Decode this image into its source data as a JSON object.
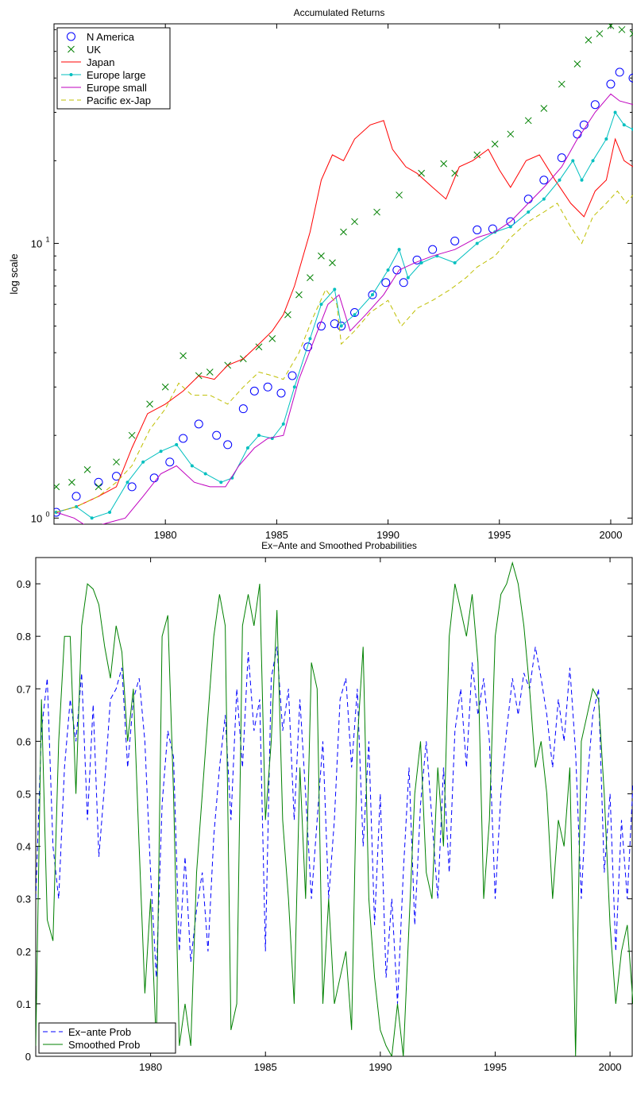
{
  "chart_data": [
    {
      "type": "line",
      "title": "Accumulated Returns",
      "ylabel": "log scale",
      "yscale": "log",
      "xlim": [
        1975.0,
        2001.0
      ],
      "ylim": [
        0.95,
        63
      ],
      "xticks": [
        1980,
        1985,
        1990,
        1995,
        2000
      ],
      "yticks": [
        {
          "value": 1,
          "label": "10",
          "sup": "0"
        },
        {
          "value": 10,
          "label": "10",
          "sup": "1"
        }
      ],
      "grid": false,
      "legend": "top-left",
      "series": [
        {
          "name": "N America",
          "color": "#0000ff",
          "marker": "circle",
          "x": [
            1975.1,
            1976.0,
            1977.0,
            1977.8,
            1978.5,
            1979.5,
            1980.2,
            1980.8,
            1981.5,
            1982.3,
            1982.8,
            1983.5,
            1984.0,
            1984.6,
            1985.2,
            1985.7,
            1986.4,
            1987.0,
            1987.6,
            1987.9,
            1988.5,
            1989.3,
            1989.9,
            1990.4,
            1990.7,
            1991.3,
            1992.0,
            1993.0,
            1994.0,
            1994.7,
            1995.5,
            1996.3,
            1997.0,
            1997.8,
            1998.5,
            1998.8,
            1999.3,
            2000.0,
            2000.4,
            2001.0
          ],
          "y": [
            1.05,
            1.2,
            1.35,
            1.42,
            1.3,
            1.4,
            1.6,
            1.95,
            2.2,
            2.0,
            1.85,
            2.5,
            2.9,
            3.0,
            2.85,
            3.3,
            4.2,
            5.0,
            5.1,
            5.0,
            5.6,
            6.5,
            7.2,
            8.0,
            7.2,
            8.7,
            9.5,
            10.2,
            11.2,
            11.3,
            12.0,
            14.5,
            17.0,
            20.5,
            25.0,
            27.0,
            32.0,
            38.0,
            42.0,
            40.0
          ]
        },
        {
          "name": "UK",
          "color": "#008000",
          "marker": "x",
          "x": [
            1975.1,
            1975.8,
            1976.5,
            1977.0,
            1977.8,
            1978.5,
            1979.3,
            1980.0,
            1980.8,
            1981.5,
            1982.0,
            1982.8,
            1983.5,
            1984.2,
            1984.8,
            1985.5,
            1986.0,
            1986.5,
            1987.0,
            1987.5,
            1988.0,
            1988.5,
            1989.5,
            1990.5,
            1991.5,
            1992.5,
            1993.0,
            1994.0,
            1994.8,
            1995.5,
            1996.3,
            1997.0,
            1997.8,
            1998.5,
            1999.0,
            1999.5,
            2000.0,
            2000.5,
            2001.0
          ],
          "y": [
            1.3,
            1.35,
            1.5,
            1.3,
            1.6,
            2.0,
            2.6,
            3.0,
            3.9,
            3.3,
            3.4,
            3.6,
            3.8,
            4.2,
            4.5,
            5.5,
            6.5,
            7.5,
            9.0,
            8.5,
            11.0,
            12.0,
            13.0,
            15.0,
            18.0,
            19.5,
            18.0,
            21.0,
            23.0,
            25.0,
            28.0,
            31.0,
            38.0,
            45.0,
            55.0,
            58.0,
            62.0,
            60.0,
            58.0
          ]
        },
        {
          "name": "Japan",
          "color": "#ff0000",
          "marker": "none",
          "x": [
            1975.1,
            1976.0,
            1977.0,
            1977.8,
            1978.5,
            1979.2,
            1980.0,
            1980.8,
            1981.5,
            1982.2,
            1982.8,
            1983.5,
            1984.2,
            1984.8,
            1985.3,
            1985.8,
            1986.5,
            1987.0,
            1987.5,
            1988.0,
            1988.5,
            1989.2,
            1989.8,
            1990.2,
            1990.8,
            1991.3,
            1992.0,
            1992.6,
            1993.2,
            1993.8,
            1994.5,
            1995.0,
            1995.5,
            1996.2,
            1996.8,
            1997.5,
            1998.2,
            1998.8,
            1999.3,
            1999.8,
            2000.2,
            2000.6,
            2001.0
          ],
          "y": [
            1.05,
            1.1,
            1.2,
            1.3,
            1.8,
            2.4,
            2.6,
            2.9,
            3.3,
            3.2,
            3.6,
            3.8,
            4.3,
            4.8,
            5.5,
            7.0,
            11.0,
            17.0,
            21.0,
            20.0,
            24.0,
            27.0,
            28.0,
            22.0,
            19.0,
            18.0,
            16.0,
            14.5,
            19.0,
            20.0,
            22.0,
            18.5,
            16.0,
            20.0,
            21.0,
            17.0,
            14.0,
            12.5,
            15.5,
            17.0,
            24.0,
            20.0,
            19.0
          ]
        },
        {
          "name": "Europe large",
          "color": "#00bfbf",
          "marker": "dot",
          "x": [
            1975.1,
            1976.0,
            1976.7,
            1977.5,
            1978.3,
            1979.0,
            1979.8,
            1980.5,
            1981.2,
            1981.8,
            1982.5,
            1983.0,
            1983.7,
            1984.2,
            1984.8,
            1985.3,
            1985.8,
            1986.5,
            1987.0,
            1987.6,
            1987.9,
            1988.5,
            1989.3,
            1990.0,
            1990.5,
            1990.9,
            1991.5,
            1992.2,
            1993.0,
            1994.0,
            1994.8,
            1995.5,
            1996.3,
            1997.0,
            1997.7,
            1998.3,
            1998.7,
            1999.2,
            1999.8,
            2000.2,
            2000.6,
            2001.0
          ],
          "y": [
            1.05,
            1.1,
            1.0,
            1.05,
            1.35,
            1.6,
            1.75,
            1.85,
            1.55,
            1.45,
            1.35,
            1.4,
            1.8,
            2.0,
            1.95,
            2.2,
            3.0,
            4.5,
            6.0,
            6.8,
            5.0,
            5.5,
            6.5,
            8.0,
            9.5,
            7.5,
            8.5,
            9.0,
            8.5,
            10.0,
            11.0,
            11.5,
            13.0,
            14.5,
            17.0,
            20.0,
            17.0,
            20.0,
            24.0,
            30.0,
            27.0,
            26.0
          ]
        },
        {
          "name": "Europe small",
          "color": "#bf00bf",
          "marker": "none",
          "x": [
            1975.1,
            1975.9,
            1976.6,
            1977.4,
            1978.2,
            1979.0,
            1979.8,
            1980.5,
            1981.3,
            1982.0,
            1982.7,
            1983.3,
            1984.0,
            1984.6,
            1985.3,
            1986.0,
            1986.7,
            1987.3,
            1987.8,
            1988.3,
            1989.0,
            1989.8,
            1990.5,
            1991.2,
            1992.0,
            1993.0,
            1994.0,
            1994.8,
            1995.5,
            1996.3,
            1997.0,
            1997.8,
            1998.5,
            1998.8,
            1999.3,
            2000.0,
            2000.4,
            2001.0
          ],
          "y": [
            1.05,
            1.0,
            0.92,
            0.96,
            1.0,
            1.2,
            1.45,
            1.55,
            1.35,
            1.3,
            1.3,
            1.55,
            1.8,
            1.95,
            2.0,
            3.2,
            4.5,
            6.0,
            6.5,
            4.8,
            5.5,
            6.5,
            8.0,
            8.5,
            9.0,
            9.5,
            10.5,
            11.0,
            12.0,
            14.0,
            16.0,
            19.0,
            24.0,
            26.0,
            30.0,
            35.0,
            33.0,
            32.0
          ]
        },
        {
          "name": "Pacific ex-Jap",
          "color": "#bfbf00",
          "marker": "none",
          "dashed": true,
          "x": [
            1975.1,
            1976.0,
            1977.0,
            1977.8,
            1978.5,
            1979.3,
            1980.0,
            1980.6,
            1981.2,
            1982.0,
            1982.8,
            1983.5,
            1984.2,
            1984.8,
            1985.3,
            1986.0,
            1986.6,
            1987.2,
            1987.7,
            1987.9,
            1988.5,
            1989.2,
            1990.0,
            1990.6,
            1991.3,
            1992.0,
            1992.8,
            1993.5,
            1994.0,
            1994.8,
            1995.5,
            1996.3,
            1997.0,
            1997.6,
            1998.2,
            1998.7,
            1999.2,
            1999.8,
            2000.3,
            2000.7,
            2001.0
          ],
          "y": [
            1.05,
            1.1,
            1.2,
            1.35,
            1.55,
            2.1,
            2.5,
            3.1,
            2.8,
            2.8,
            2.6,
            3.0,
            3.4,
            3.3,
            3.2,
            4.0,
            5.3,
            6.8,
            6.0,
            4.3,
            4.8,
            5.6,
            6.2,
            5.0,
            5.8,
            6.2,
            6.8,
            7.5,
            8.2,
            9.0,
            10.5,
            12.0,
            13.0,
            14.0,
            11.5,
            10.0,
            12.5,
            14.0,
            15.5,
            14.0,
            15.0
          ]
        }
      ]
    },
    {
      "type": "line",
      "title": "Ex−Ante and Smoothed Probabilities",
      "xlim": [
        1975.0,
        2001.0
      ],
      "ylim": [
        0,
        0.95
      ],
      "xticks": [
        1980,
        1985,
        1990,
        1995,
        2000
      ],
      "yticks": [
        0,
        0.1,
        0.2,
        0.3,
        0.4,
        0.5,
        0.6,
        0.7,
        0.8,
        0.9
      ],
      "grid": false,
      "legend": "bottom-left",
      "series": [
        {
          "name": "Ex−ante Prob",
          "color": "#0000ff",
          "dashed": true,
          "x": [
            1975.0,
            1975.25,
            1975.5,
            1975.75,
            1976.0,
            1976.25,
            1976.5,
            1976.75,
            1977.0,
            1977.25,
            1977.5,
            1977.75,
            1978.0,
            1978.25,
            1978.5,
            1978.75,
            1979.0,
            1979.25,
            1979.5,
            1979.75,
            1980.0,
            1980.25,
            1980.5,
            1980.75,
            1981.0,
            1981.25,
            1981.5,
            1981.75,
            1982.0,
            1982.25,
            1982.5,
            1982.75,
            1983.0,
            1983.25,
            1983.5,
            1983.75,
            1984.0,
            1984.25,
            1984.5,
            1984.75,
            1985.0,
            1985.25,
            1985.5,
            1985.75,
            1986.0,
            1986.25,
            1986.5,
            1986.75,
            1987.0,
            1987.25,
            1987.5,
            1987.75,
            1988.0,
            1988.25,
            1988.5,
            1988.75,
            1989.0,
            1989.25,
            1989.5,
            1989.75,
            1990.0,
            1990.25,
            1990.5,
            1990.75,
            1991.0,
            1991.25,
            1991.5,
            1991.75,
            1992.0,
            1992.25,
            1992.5,
            1992.75,
            1993.0,
            1993.25,
            1993.5,
            1993.75,
            1994.0,
            1994.25,
            1994.5,
            1994.75,
            1995.0,
            1995.25,
            1995.5,
            1995.75,
            1996.0,
            1996.25,
            1996.5,
            1996.75,
            1997.0,
            1997.25,
            1997.5,
            1997.75,
            1998.0,
            1998.25,
            1998.5,
            1998.75,
            1999.0,
            1999.25,
            1999.5,
            1999.75,
            2000.0,
            2000.25,
            2000.5,
            2000.75,
            2001.0
          ],
          "y": [
            0.3,
            0.62,
            0.72,
            0.4,
            0.3,
            0.55,
            0.68,
            0.6,
            0.73,
            0.45,
            0.67,
            0.38,
            0.52,
            0.68,
            0.7,
            0.74,
            0.55,
            0.68,
            0.72,
            0.6,
            0.35,
            0.15,
            0.48,
            0.62,
            0.57,
            0.2,
            0.38,
            0.18,
            0.28,
            0.35,
            0.2,
            0.42,
            0.55,
            0.65,
            0.45,
            0.7,
            0.55,
            0.77,
            0.62,
            0.68,
            0.2,
            0.72,
            0.78,
            0.62,
            0.7,
            0.45,
            0.68,
            0.5,
            0.3,
            0.45,
            0.6,
            0.3,
            0.45,
            0.68,
            0.72,
            0.55,
            0.7,
            0.4,
            0.6,
            0.25,
            0.5,
            0.15,
            0.3,
            0.1,
            0.35,
            0.55,
            0.25,
            0.48,
            0.6,
            0.45,
            0.3,
            0.55,
            0.35,
            0.62,
            0.7,
            0.55,
            0.75,
            0.65,
            0.72,
            0.6,
            0.3,
            0.5,
            0.62,
            0.72,
            0.65,
            0.73,
            0.7,
            0.78,
            0.72,
            0.65,
            0.55,
            0.68,
            0.6,
            0.74,
            0.58,
            0.3,
            0.52,
            0.65,
            0.7,
            0.35,
            0.5,
            0.2,
            0.45,
            0.3,
            0.52
          ]
        },
        {
          "name": "Smoothed Prob",
          "color": "#008000",
          "dashed": false,
          "x": [
            1975.0,
            1975.25,
            1975.5,
            1975.75,
            1976.0,
            1976.25,
            1976.5,
            1976.75,
            1977.0,
            1977.25,
            1977.5,
            1977.75,
            1978.0,
            1978.25,
            1978.5,
            1978.75,
            1979.0,
            1979.25,
            1979.5,
            1979.75,
            1980.0,
            1980.25,
            1980.5,
            1980.75,
            1981.0,
            1981.25,
            1981.5,
            1981.75,
            1982.0,
            1982.25,
            1982.5,
            1982.75,
            1983.0,
            1983.25,
            1983.5,
            1983.75,
            1984.0,
            1984.25,
            1984.5,
            1984.75,
            1985.0,
            1985.25,
            1985.5,
            1985.75,
            1986.0,
            1986.25,
            1986.5,
            1986.75,
            1987.0,
            1987.25,
            1987.5,
            1987.75,
            1988.0,
            1988.25,
            1988.5,
            1988.75,
            1989.0,
            1989.25,
            1989.5,
            1989.75,
            1990.0,
            1990.25,
            1990.5,
            1990.75,
            1991.0,
            1991.25,
            1991.5,
            1991.75,
            1992.0,
            1992.25,
            1992.5,
            1992.75,
            1993.0,
            1993.25,
            1993.5,
            1993.75,
            1994.0,
            1994.25,
            1994.5,
            1994.75,
            1995.0,
            1995.25,
            1995.5,
            1995.75,
            1996.0,
            1996.25,
            1996.5,
            1996.75,
            1997.0,
            1997.25,
            1997.5,
            1997.75,
            1998.0,
            1998.25,
            1998.5,
            1998.75,
            1999.0,
            1999.25,
            1999.5,
            1999.75,
            2000.0,
            2000.25,
            2000.5,
            2000.75,
            2001.0
          ],
          "y": [
            0.02,
            0.68,
            0.26,
            0.22,
            0.6,
            0.8,
            0.8,
            0.5,
            0.82,
            0.9,
            0.89,
            0.86,
            0.78,
            0.72,
            0.82,
            0.77,
            0.6,
            0.7,
            0.4,
            0.12,
            0.3,
            0.02,
            0.8,
            0.84,
            0.5,
            0.02,
            0.1,
            0.02,
            0.35,
            0.5,
            0.65,
            0.8,
            0.88,
            0.82,
            0.05,
            0.1,
            0.82,
            0.88,
            0.82,
            0.9,
            0.45,
            0.6,
            0.85,
            0.45,
            0.3,
            0.1,
            0.55,
            0.3,
            0.75,
            0.7,
            0.1,
            0.3,
            0.1,
            0.15,
            0.2,
            0.05,
            0.6,
            0.78,
            0.3,
            0.15,
            0.05,
            0.02,
            0.0,
            0.1,
            0.0,
            0.25,
            0.5,
            0.6,
            0.35,
            0.3,
            0.55,
            0.4,
            0.8,
            0.9,
            0.85,
            0.8,
            0.88,
            0.75,
            0.3,
            0.45,
            0.8,
            0.88,
            0.9,
            0.94,
            0.9,
            0.82,
            0.7,
            0.55,
            0.6,
            0.5,
            0.3,
            0.45,
            0.4,
            0.55,
            0.0,
            0.6,
            0.65,
            0.7,
            0.68,
            0.5,
            0.25,
            0.1,
            0.2,
            0.25,
            0.1
          ]
        }
      ]
    }
  ]
}
